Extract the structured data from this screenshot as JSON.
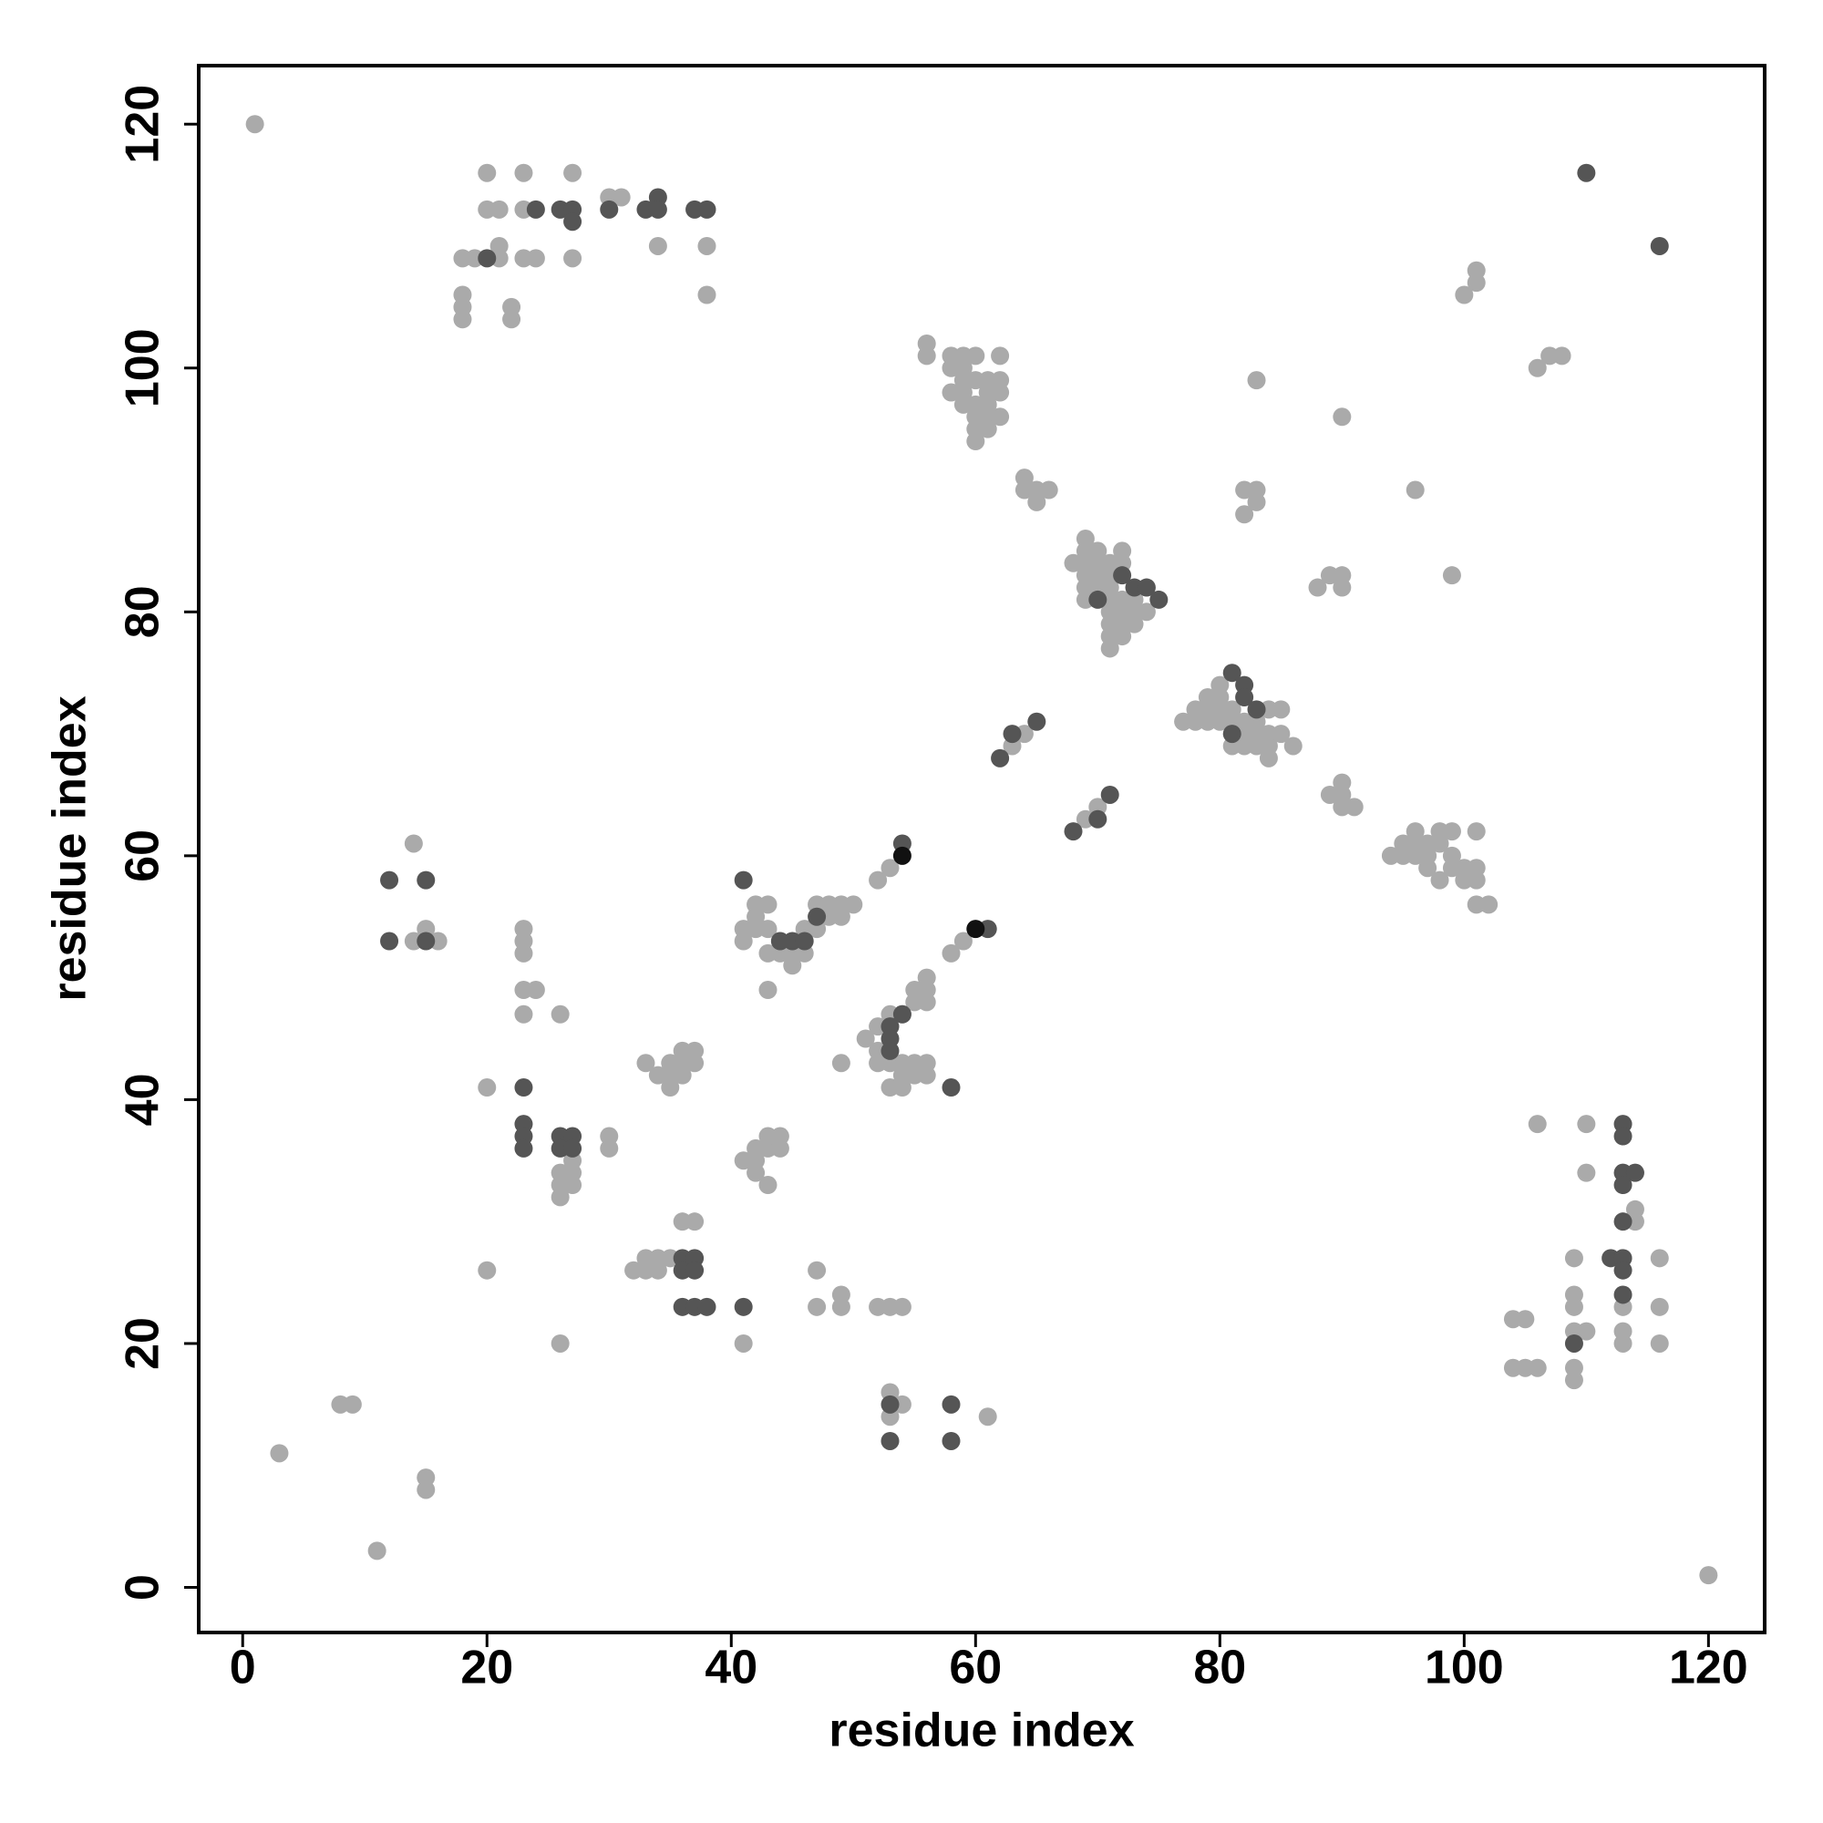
{
  "chart_data": {
    "type": "scatter",
    "x_label": "residue index",
    "y_label": "residue index",
    "xlim": [
      -3.6,
      124.6
    ],
    "ylim": [
      -3.7,
      124.8
    ],
    "xticks": [
      0,
      20,
      40,
      60,
      80,
      100,
      120
    ],
    "yticks": [
      0,
      20,
      40,
      60,
      80,
      100,
      120
    ],
    "grid": false,
    "series": [
      {
        "color": "#aaaaaa",
        "x": [
          1,
          3,
          8,
          9,
          11,
          15,
          15,
          14,
          14,
          15,
          16,
          18,
          19,
          18,
          18,
          18,
          20,
          20,
          21,
          21,
          21,
          22,
          22,
          23,
          23,
          23,
          24,
          27,
          27,
          30,
          31,
          34,
          38,
          38,
          20,
          20,
          23,
          23,
          23,
          23,
          24,
          23,
          26,
          26,
          26,
          26,
          27,
          27,
          27,
          26,
          30,
          30,
          32,
          33,
          33,
          34,
          34,
          35,
          36,
          37,
          33,
          34,
          35,
          35,
          35,
          36,
          36,
          37,
          36,
          37,
          41,
          41,
          42,
          42,
          43,
          43,
          44,
          44,
          43,
          42,
          41,
          41,
          42,
          42,
          43,
          42,
          43,
          43,
          44,
          44,
          45,
          45,
          46,
          46,
          47,
          47,
          48,
          48,
          49,
          49,
          50,
          43,
          47,
          47,
          49,
          49,
          52,
          53,
          54,
          53,
          53,
          54,
          61,
          49,
          51,
          52,
          52,
          52,
          53,
          53,
          53,
          54,
          54,
          54,
          55,
          55,
          55,
          56,
          56,
          56,
          56,
          56,
          55,
          54,
          52,
          53,
          58,
          59,
          56,
          56,
          58,
          59,
          60,
          62,
          58,
          59,
          58,
          59,
          60,
          61,
          62,
          59,
          60,
          61,
          62,
          60,
          61,
          62,
          60,
          61,
          60,
          59,
          61,
          64,
          64,
          65,
          65,
          66,
          63,
          64,
          69,
          70,
          68,
          69,
          69,
          70,
          69,
          70,
          71,
          72,
          69,
          70,
          71,
          72,
          69,
          70,
          71,
          69,
          71,
          72,
          73,
          71,
          72,
          73,
          74,
          71,
          72,
          73,
          71,
          72,
          71,
          77,
          78,
          78,
          79,
          79,
          79,
          80,
          80,
          80,
          80,
          81,
          81,
          82,
          82,
          82,
          81,
          83,
          83,
          83,
          84,
          84,
          84,
          84,
          85,
          85,
          86,
          82,
          83,
          82,
          83,
          83,
          88,
          89,
          90,
          90,
          90,
          89,
          90,
          90,
          90,
          91,
          94,
          95,
          95,
          96,
          96,
          96,
          97,
          97,
          98,
          98,
          99,
          99,
          100,
          100,
          101,
          101,
          101,
          101,
          102,
          97,
          98,
          99,
          96,
          99,
          100,
          101,
          101,
          106,
          107,
          108,
          104,
          105,
          104,
          105,
          106,
          106,
          109,
          109,
          109,
          109,
          110,
          109,
          109,
          110,
          110,
          113,
          113,
          113,
          114,
          114,
          116,
          116,
          116,
          120
        ],
        "values": [
          120,
          11,
          15,
          15,
          3,
          9,
          8,
          61,
          53,
          54,
          53,
          109,
          109,
          106,
          105,
          104,
          116,
          113,
          113,
          110,
          109,
          105,
          104,
          116,
          113,
          109,
          109,
          116,
          109,
          114,
          114,
          110,
          110,
          106,
          41,
          26,
          54,
          53,
          52,
          49,
          49,
          47,
          47,
          20,
          33,
          32,
          35,
          34,
          33,
          34,
          37,
          36,
          26,
          27,
          26,
          27,
          26,
          27,
          30,
          30,
          43,
          42,
          42,
          41,
          43,
          43,
          42,
          44,
          44,
          43,
          20,
          35,
          35,
          34,
          36,
          37,
          37,
          36,
          33,
          36,
          54,
          53,
          56,
          55,
          56,
          54,
          54,
          52,
          53,
          52,
          51,
          52,
          52,
          54,
          56,
          54,
          56,
          55,
          56,
          55,
          56,
          49,
          26,
          23,
          24,
          23,
          23,
          23,
          23,
          16,
          14,
          15,
          14,
          43,
          45,
          46,
          44,
          43,
          47,
          43,
          41,
          47,
          43,
          41,
          49,
          48,
          43,
          50,
          49,
          48,
          43,
          42,
          42,
          42,
          58,
          59,
          52,
          53,
          102,
          101,
          101,
          101,
          101,
          101,
          100,
          100,
          98,
          99,
          99,
          99,
          99,
          97,
          97,
          97,
          98,
          96,
          96,
          96,
          95,
          95,
          94,
          98,
          98,
          91,
          90,
          90,
          89,
          90,
          69,
          70,
          63,
          64,
          84,
          86,
          85,
          85,
          84,
          84,
          84,
          85,
          83,
          83,
          83,
          84,
          82,
          82,
          82,
          81,
          81,
          81,
          81,
          80,
          80,
          80,
          80,
          79,
          79,
          79,
          78,
          78,
          77,
          71,
          72,
          71,
          73,
          72,
          71,
          74,
          73,
          72,
          71,
          72,
          71,
          71,
          70,
          69,
          69,
          71,
          70,
          69,
          72,
          70,
          69,
          68,
          72,
          70,
          69,
          90,
          90,
          88,
          89,
          99,
          82,
          83,
          83,
          82,
          96,
          65,
          66,
          65,
          64,
          64,
          60,
          61,
          60,
          62,
          61,
          60,
          61,
          60,
          62,
          61,
          62,
          60,
          59,
          58,
          62,
          59,
          58,
          56,
          56,
          59,
          58,
          59,
          90,
          83,
          106,
          107,
          108,
          100,
          101,
          101,
          22,
          22,
          18,
          18,
          18,
          38,
          27,
          24,
          23,
          21,
          21,
          18,
          17,
          38,
          34,
          23,
          21,
          20,
          31,
          30,
          27,
          23,
          20,
          1
        ]
      },
      {
        "color": "#555555",
        "x": [
          12,
          12,
          15,
          15,
          20,
          24,
          26,
          27,
          27,
          30,
          33,
          34,
          34,
          37,
          38,
          23,
          23,
          23,
          23,
          26,
          26,
          27,
          27,
          36,
          36,
          37,
          37,
          36,
          37,
          38,
          41,
          41,
          44,
          45,
          46,
          47,
          53,
          53,
          53,
          54,
          54,
          58,
          53,
          53,
          58,
          58,
          61,
          62,
          63,
          65,
          68,
          70,
          71,
          70,
          72,
          73,
          74,
          75,
          81,
          82,
          82,
          83,
          81,
          110,
          116,
          109,
          112,
          113,
          113,
          113,
          114,
          113,
          113,
          113,
          113,
          113
        ],
        "values": [
          58,
          53,
          58,
          53,
          109,
          113,
          113,
          113,
          112,
          113,
          113,
          114,
          113,
          113,
          113,
          41,
          38,
          37,
          36,
          37,
          36,
          37,
          36,
          27,
          26,
          27,
          26,
          23,
          23,
          23,
          23,
          58,
          53,
          53,
          53,
          55,
          46,
          45,
          44,
          47,
          61,
          41,
          15,
          12,
          15,
          12,
          54,
          68,
          70,
          71,
          62,
          63,
          65,
          81,
          83,
          82,
          82,
          81,
          75,
          74,
          73,
          72,
          70,
          116,
          110,
          20,
          27,
          38,
          37,
          34,
          34,
          33,
          30,
          27,
          26,
          24
        ]
      },
      {
        "color": "#111111",
        "x": [
          54,
          60
        ],
        "values": [
          60,
          54
        ]
      }
    ]
  }
}
